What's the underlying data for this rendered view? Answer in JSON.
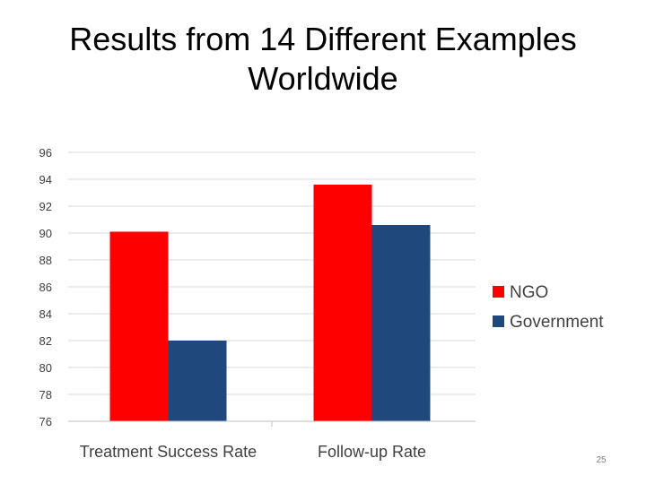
{
  "slide": {
    "title_line1": "Results from 14 Different Examples",
    "title_line2": "Worldwide",
    "slide_number": "25"
  },
  "chart_data": {
    "type": "bar",
    "title": "",
    "xlabel": "",
    "ylabel": "",
    "categories": [
      "Treatment Success Rate",
      "Follow-up Rate"
    ],
    "series": [
      {
        "name": "NGO",
        "color": "#ff0000",
        "values": [
          90.1,
          93.6
        ]
      },
      {
        "name": "Government",
        "color": "#1f497d",
        "values": [
          82.0,
          90.6
        ]
      }
    ],
    "ylim": [
      76,
      96
    ],
    "yticks": [
      76,
      78,
      80,
      82,
      84,
      86,
      88,
      90,
      92,
      94,
      96
    ],
    "grid": true,
    "legend_position": "right"
  }
}
